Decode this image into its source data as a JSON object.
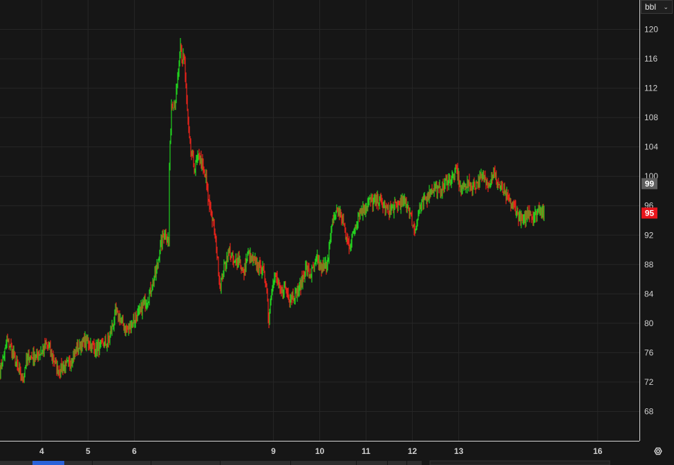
{
  "unit_selector": {
    "label": "bbl",
    "icon": "chevron-down-icon"
  },
  "settings": {
    "icon": "settings-icon"
  },
  "colors": {
    "background": "#161616",
    "grid": "#262626",
    "axis_text": "#d0d0d0",
    "up": "#22d21f",
    "down": "#e8231a",
    "prev_close_badge": "#5e5e5e",
    "last_price_badge": "#e8141b"
  },
  "chart_data": {
    "type": "line",
    "title": "",
    "xlabel": "",
    "ylabel": "",
    "ylim": [
      64,
      124
    ],
    "xlim": [
      3.1,
      16.9
    ],
    "y_ticks": [
      68,
      72,
      76,
      80,
      84,
      88,
      92,
      96,
      100,
      104,
      108,
      112,
      116,
      120
    ],
    "x_ticks": [
      {
        "x": 4,
        "label": "4"
      },
      {
        "x": 5,
        "label": "5"
      },
      {
        "x": 6,
        "label": "6"
      },
      {
        "x": 9,
        "label": "9"
      },
      {
        "x": 10,
        "label": "10"
      },
      {
        "x": 11,
        "label": "11"
      },
      {
        "x": 12,
        "label": "12"
      },
      {
        "x": 13,
        "label": "13"
      },
      {
        "x": 16,
        "label": "16"
      }
    ],
    "grid": true,
    "price_labels": [
      {
        "name": "prev_close",
        "value": 99,
        "label": "99"
      },
      {
        "name": "last",
        "value": 95,
        "label": "95"
      }
    ],
    "series": [
      {
        "x": [
          3.1,
          3.25,
          3.35,
          3.5,
          3.6,
          3.65,
          3.75,
          3.9,
          4.1,
          4.2,
          4.35,
          4.45,
          4.6,
          4.75,
          4.9,
          5.0,
          5.15,
          5.3,
          5.45,
          5.6,
          5.7,
          5.85,
          6.0,
          6.15,
          6.3,
          6.45,
          6.55,
          6.65,
          6.75,
          6.75,
          6.8,
          6.88,
          6.95,
          7.0,
          7.03,
          7.05,
          7.08,
          7.1,
          7.15,
          7.2,
          7.3,
          7.4,
          7.48,
          7.55,
          7.6,
          7.65,
          7.75,
          7.85,
          7.95,
          8.05,
          8.15,
          8.25,
          8.35,
          8.45,
          8.55,
          8.65,
          8.75,
          8.85,
          8.9,
          8.95,
          9.05,
          9.15,
          9.25,
          9.35,
          9.45,
          9.55,
          9.6,
          9.7,
          9.8,
          9.95,
          10.05,
          10.15,
          10.3,
          10.4,
          10.5,
          10.55,
          10.65,
          10.75,
          10.85,
          10.95,
          11.05,
          11.2,
          11.3,
          11.4,
          11.55,
          11.65,
          11.75,
          11.9,
          12.05,
          12.15,
          12.3,
          12.45,
          12.6,
          12.75,
          12.85,
          12.95,
          13.05,
          13.15,
          13.3,
          13.45,
          13.55,
          13.65,
          13.75,
          13.85,
          14.0,
          14.1,
          14.2,
          14.3,
          14.4,
          14.5,
          14.6,
          14.7,
          14.75,
          14.85
        ],
        "values": [
          73.5,
          77.5,
          76.5,
          73.5,
          72.5,
          74.5,
          75.5,
          75.5,
          77.0,
          76.0,
          73.5,
          74.0,
          74.5,
          76.5,
          77.5,
          77.5,
          76.5,
          77.0,
          77.5,
          81.5,
          80.5,
          79.0,
          80.5,
          82.0,
          83.5,
          86.5,
          90.0,
          92.5,
          91.0,
          100.0,
          110.0,
          110.0,
          114.0,
          118.0,
          115.0,
          117.0,
          116.0,
          113.0,
          108.0,
          104.0,
          101.0,
          103.0,
          101.0,
          99.5,
          96.5,
          95.5,
          91.5,
          85.0,
          88.0,
          90.0,
          88.0,
          89.0,
          86.5,
          89.5,
          88.5,
          88.0,
          87.5,
          85.5,
          80.0,
          84.5,
          86.5,
          84.0,
          85.0,
          83.5,
          84.0,
          84.5,
          85.5,
          87.5,
          86.5,
          88.5,
          87.5,
          88.0,
          94.5,
          95.5,
          94.0,
          92.0,
          90.5,
          93.0,
          95.0,
          95.5,
          96.5,
          96.5,
          97.0,
          95.5,
          95.5,
          96.0,
          96.5,
          96.0,
          92.5,
          95.5,
          97.0,
          98.5,
          98.0,
          99.5,
          99.5,
          101.0,
          98.0,
          99.0,
          98.5,
          99.5,
          100.0,
          99.0,
          100.5,
          99.0,
          97.5,
          96.5,
          96.0,
          94.5,
          93.5,
          95.5,
          94.5,
          95.0,
          96.0,
          95.0
        ]
      }
    ]
  }
}
